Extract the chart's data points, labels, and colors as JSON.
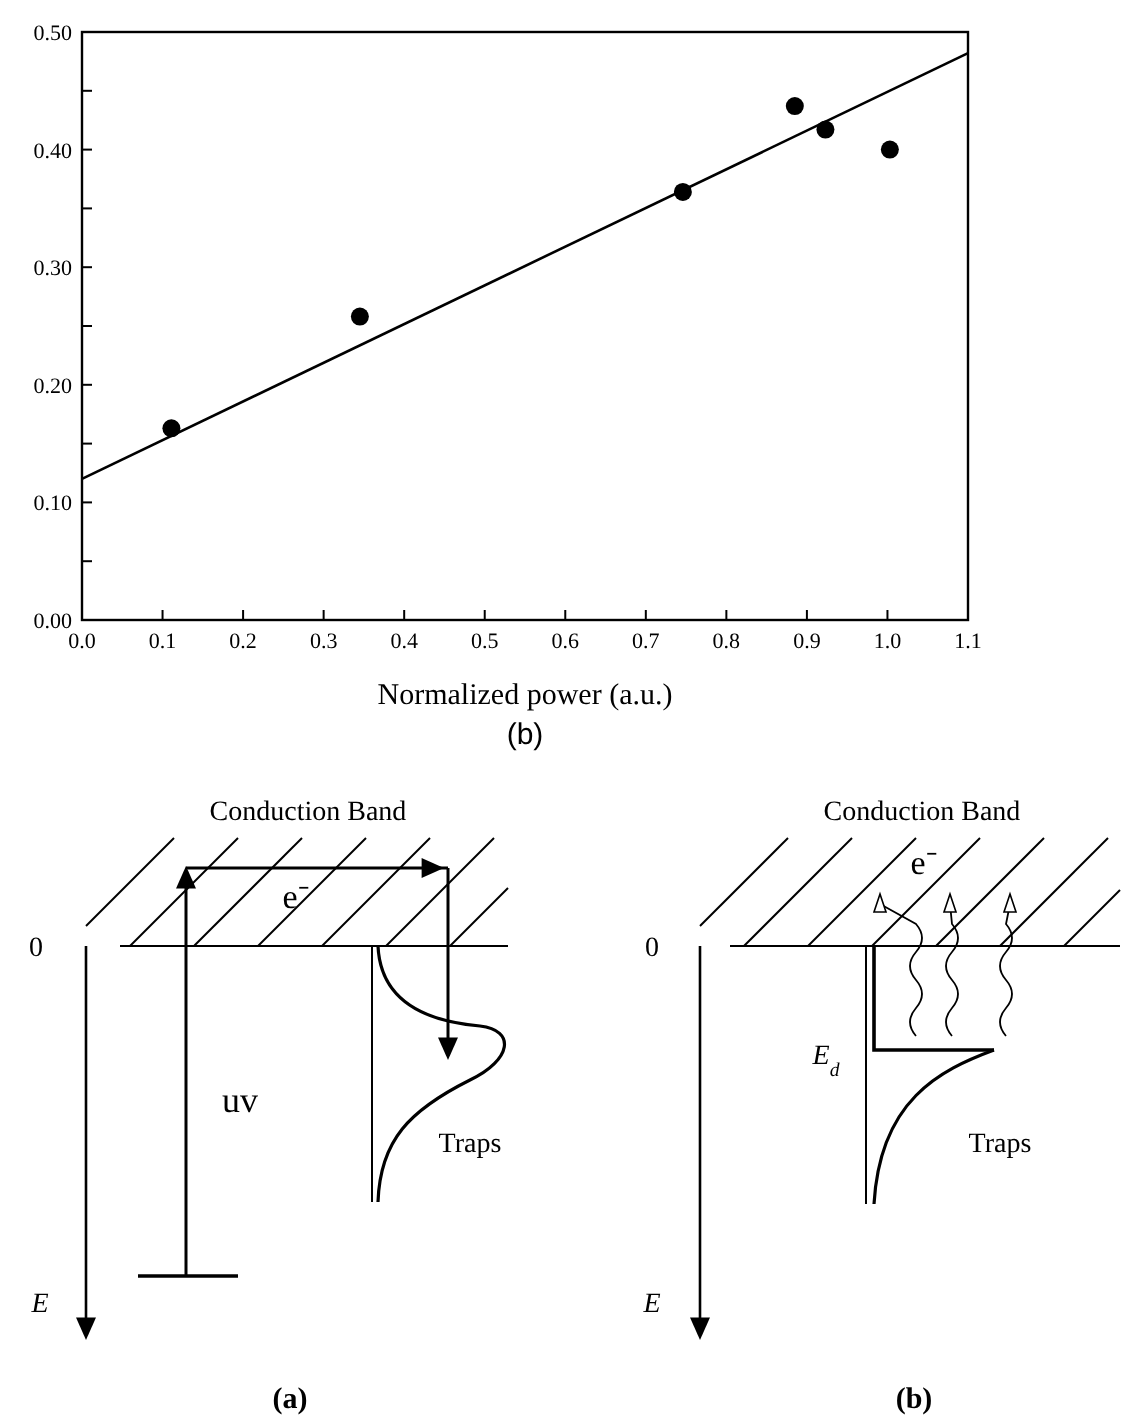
{
  "chart_data": {
    "type": "scatter",
    "xlabel": "Normalized power (a.u.)",
    "xlim": [
      0,
      1.1
    ],
    "ylim": [
      0,
      0.5
    ],
    "xticks": [
      {
        "value": 0,
        "label": "0.0"
      },
      {
        "value": 0.1,
        "label": "0.1"
      },
      {
        "value": 0.2,
        "label": "0.2"
      },
      {
        "value": 0.3,
        "label": "0.3"
      },
      {
        "value": 0.4,
        "label": "0.4"
      },
      {
        "value": 0.5,
        "label": "0.5"
      },
      {
        "value": 0.6,
        "label": "0.6"
      },
      {
        "value": 0.7,
        "label": "0.7"
      },
      {
        "value": 0.8,
        "label": "0.8"
      },
      {
        "value": 0.9,
        "label": "0.9"
      },
      {
        "value": 1,
        "label": "1.0"
      },
      {
        "value": 1.1,
        "label": "1.1"
      }
    ],
    "yticks": [
      {
        "value": 0,
        "label": "0.00"
      },
      {
        "value": 0.05,
        "label": null
      },
      {
        "value": 0.1,
        "label": "0.10"
      },
      {
        "value": 0.15,
        "label": null
      },
      {
        "value": 0.2,
        "label": "0.20"
      },
      {
        "value": 0.25,
        "label": null
      },
      {
        "value": 0.3,
        "label": "0.30"
      },
      {
        "value": 0.35,
        "label": null
      },
      {
        "value": 0.4,
        "label": "0.40"
      },
      {
        "value": 0.45,
        "label": null
      },
      {
        "value": 0.5,
        "label": "0.50"
      }
    ],
    "grid": false,
    "series": [
      {
        "marker": "circle",
        "color": "#000000",
        "x": [
          0.111,
          0.345,
          0.746,
          0.885,
          0.923,
          1.003
        ],
        "values": [
          0.163,
          0.258,
          0.364,
          0.437,
          0.417,
          0.4
        ]
      },
      {
        "type": "line",
        "color": "#000000",
        "x": [
          0,
          1.1
        ],
        "values": [
          0.12,
          0.482
        ]
      }
    ],
    "annotations": [
      "(b)",
      "Conduction Band",
      "e⁻",
      "0",
      "uv",
      "Traps",
      "E",
      "(a)",
      "Conduction Band",
      "e⁻",
      "0",
      "E$_{d}$",
      "Traps",
      "E",
      "(b)"
    ]
  }
}
